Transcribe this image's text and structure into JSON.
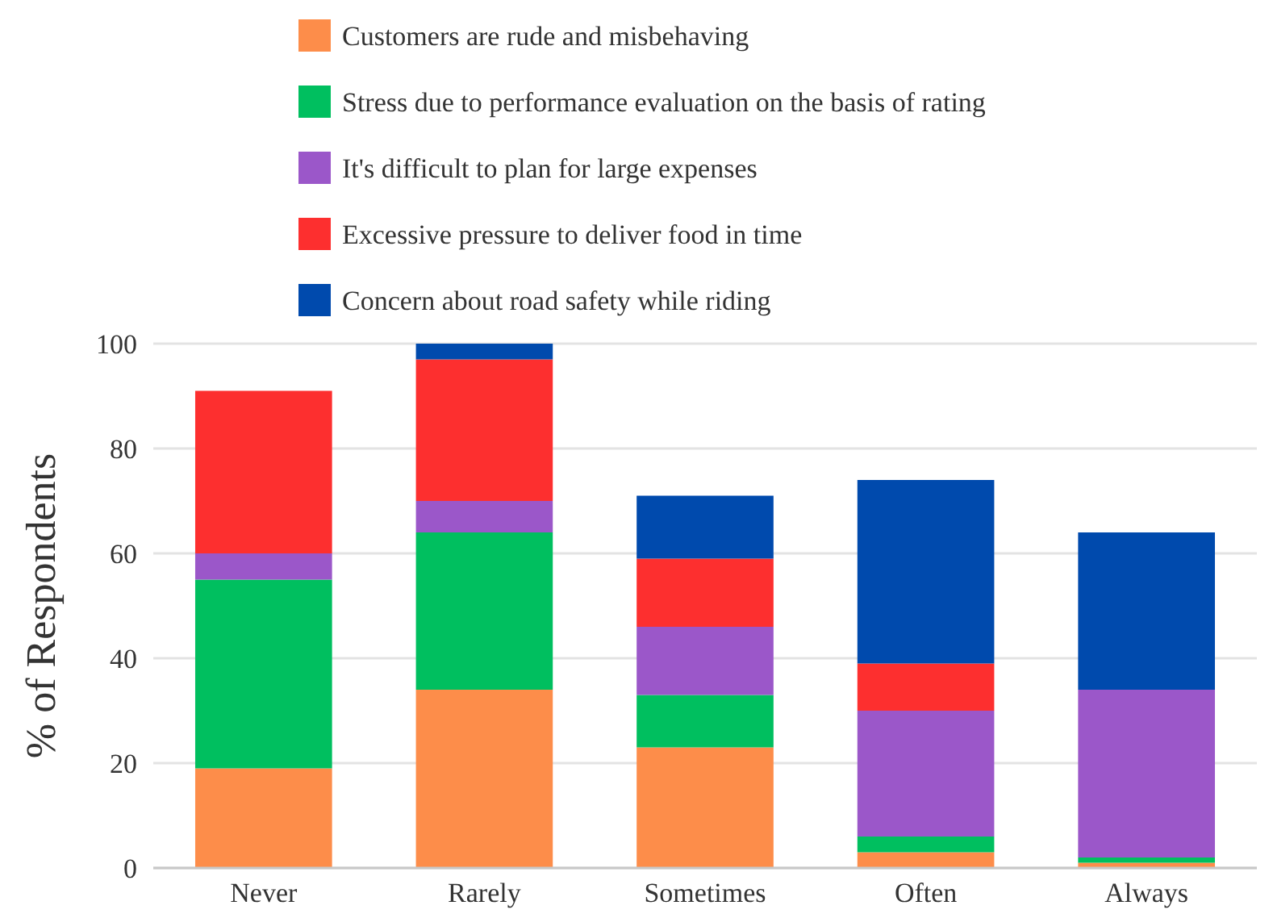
{
  "chart_data": {
    "type": "bar",
    "stacked": true,
    "ylabel": "% of Respondents",
    "categories": [
      "Never",
      "Rarely",
      "Sometimes",
      "Often",
      "Always"
    ],
    "series": [
      {
        "name": "Customers are rude and misbehaving",
        "color": "#fd8d4a",
        "values": [
          19,
          34,
          23,
          3,
          1
        ]
      },
      {
        "name": "Stress due to performance evaluation on the basis of rating",
        "color": "#00bf5f",
        "values": [
          36,
          30,
          10,
          3,
          1
        ]
      },
      {
        "name": "It's difficult to plan for large expenses",
        "color": "#9b57c9",
        "values": [
          5,
          6,
          13,
          24,
          32
        ]
      },
      {
        "name": "Excessive pressure to deliver food in time",
        "color": "#fd2f2f",
        "values": [
          31,
          27,
          13,
          9,
          0
        ]
      },
      {
        "name": "Concern about road safety while riding",
        "color": "#004aad",
        "values": [
          0,
          3,
          12,
          35,
          30
        ]
      }
    ],
    "ylim": [
      0,
      100
    ],
    "yticks": [
      0,
      20,
      40,
      60,
      80,
      100
    ],
    "grid": "y",
    "legend": "top"
  }
}
